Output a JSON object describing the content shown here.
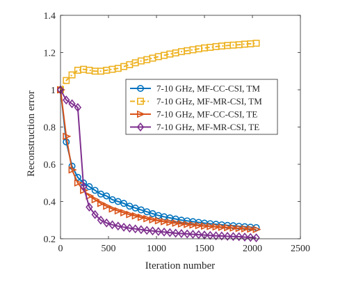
{
  "chart_data": {
    "type": "line",
    "title": "",
    "xlabel": "Iteration number",
    "ylabel": "Reconstruction error",
    "xlim": [
      0,
      2500
    ],
    "ylim": [
      0.2,
      1.4
    ],
    "xticks": [
      0,
      500,
      1000,
      1500,
      2000,
      2500
    ],
    "yticks": [
      0.2,
      0.4,
      0.6,
      0.8,
      1,
      1.2,
      1.4
    ],
    "xtick_labels": [
      "0",
      "500",
      "1000",
      "1500",
      "2000",
      "2500"
    ],
    "ytick_labels": [
      "0.2",
      "0.4",
      "0.6",
      "0.8",
      "1",
      "1.2",
      "1.4"
    ],
    "grid": false,
    "legend_position": "upper-right",
    "x": [
      0,
      60,
      120,
      180,
      240,
      300,
      360,
      420,
      480,
      540,
      600,
      660,
      720,
      780,
      840,
      900,
      960,
      1020,
      1080,
      1140,
      1200,
      1260,
      1320,
      1380,
      1440,
      1500,
      1560,
      1620,
      1680,
      1740,
      1800,
      1860,
      1920,
      1980,
      2040
    ],
    "series": [
      {
        "name": "7-10 GHz, MF-CC-CSI, TM",
        "color": "#0072bd",
        "marker": "circle",
        "dash": "solid",
        "values": [
          1.0,
          0.72,
          0.59,
          0.53,
          0.5,
          0.48,
          0.46,
          0.44,
          0.43,
          0.41,
          0.4,
          0.39,
          0.375,
          0.365,
          0.355,
          0.345,
          0.335,
          0.325,
          0.318,
          0.312,
          0.306,
          0.3,
          0.296,
          0.292,
          0.288,
          0.284,
          0.281,
          0.278,
          0.275,
          0.272,
          0.27,
          0.267,
          0.265,
          0.262,
          0.26
        ]
      },
      {
        "name": "7-10 GHz, MF-MR-CSI, TM",
        "color": "#edb120",
        "marker": "square",
        "dash": "dashdot",
        "values": [
          1.0,
          1.05,
          1.08,
          1.105,
          1.11,
          1.105,
          1.1,
          1.1,
          1.105,
          1.11,
          1.115,
          1.125,
          1.135,
          1.145,
          1.155,
          1.162,
          1.17,
          1.178,
          1.185,
          1.192,
          1.198,
          1.205,
          1.21,
          1.215,
          1.22,
          1.225,
          1.228,
          1.232,
          1.235,
          1.238,
          1.24,
          1.242,
          1.245,
          1.247,
          1.25
        ]
      },
      {
        "name": "7-10 GHz, MF-CC-CSI, TE",
        "color": "#d95319",
        "marker": "triangle-right",
        "dash": "solid",
        "values": [
          1.0,
          0.75,
          0.57,
          0.5,
          0.46,
          0.43,
          0.41,
          0.39,
          0.375,
          0.36,
          0.35,
          0.34,
          0.33,
          0.323,
          0.315,
          0.308,
          0.302,
          0.297,
          0.292,
          0.288,
          0.284,
          0.28,
          0.277,
          0.274,
          0.271,
          0.268,
          0.266,
          0.264,
          0.262,
          0.26,
          0.258,
          0.256,
          0.254,
          0.252,
          0.25
        ]
      },
      {
        "name": "7-10 GHz, MF-MR-CSI, TE",
        "color": "#7e2f8e",
        "marker": "diamond",
        "dash": "solid",
        "values": [
          1.0,
          0.945,
          0.925,
          0.905,
          0.48,
          0.37,
          0.33,
          0.3,
          0.285,
          0.275,
          0.268,
          0.262,
          0.257,
          0.253,
          0.249,
          0.245,
          0.242,
          0.239,
          0.236,
          0.233,
          0.23,
          0.228,
          0.226,
          0.224,
          0.222,
          0.22,
          0.218,
          0.216,
          0.215,
          0.213,
          0.212,
          0.211,
          0.209,
          0.207,
          0.205
        ]
      }
    ]
  }
}
